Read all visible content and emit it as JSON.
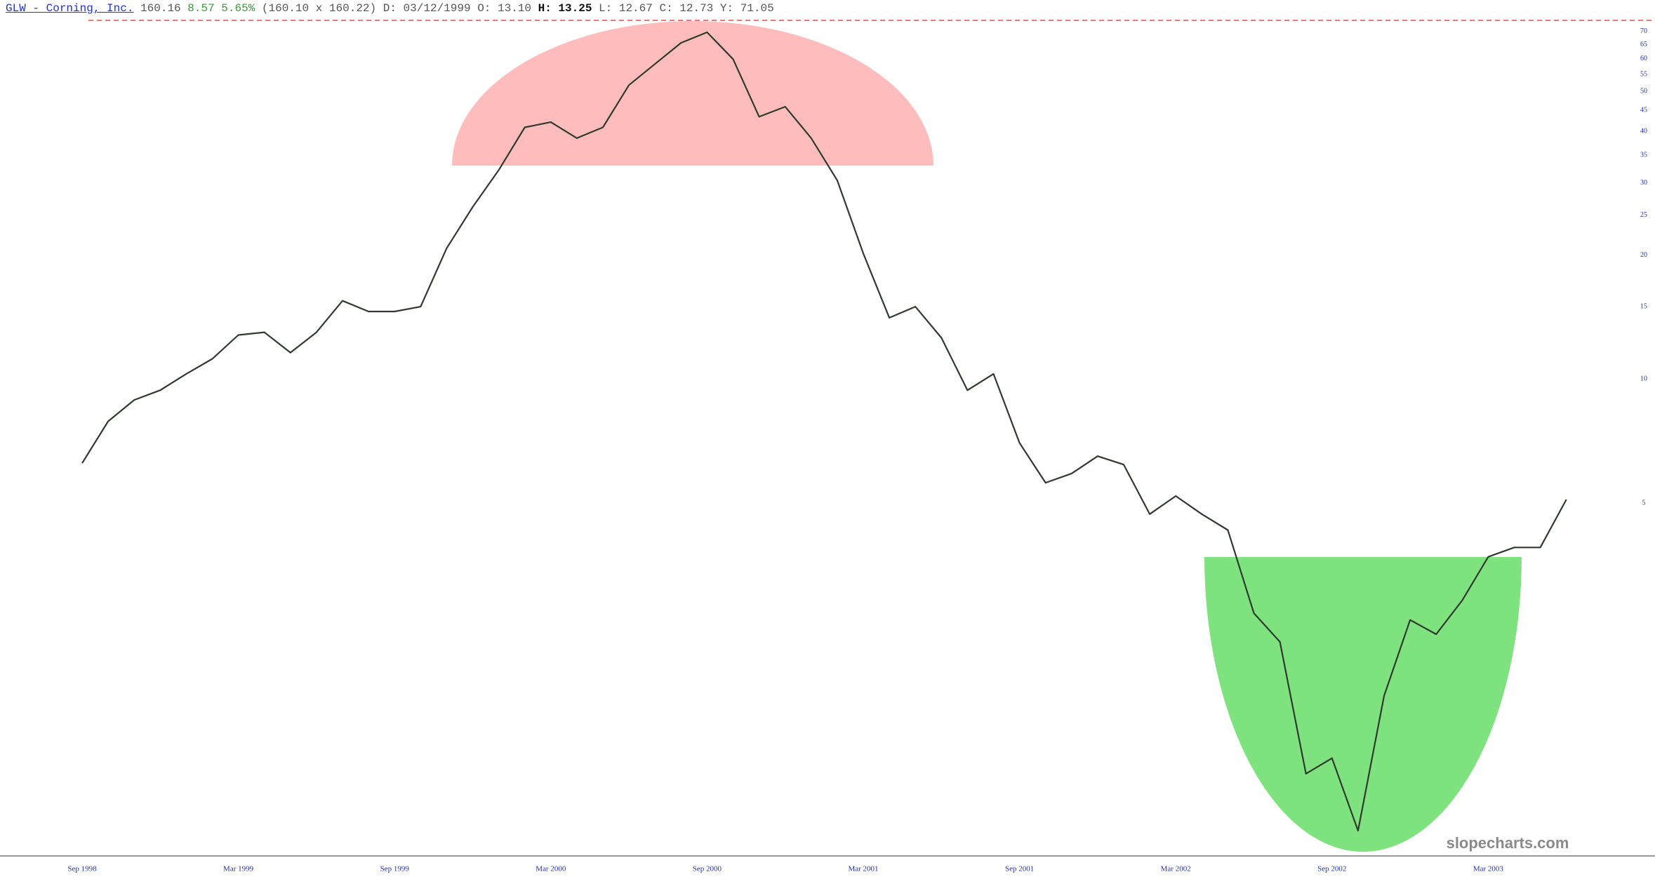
{
  "header": {
    "symbol": "GLW - Corning, Inc.",
    "last": "160.16",
    "change": "8.57",
    "change_pct": "5.65%",
    "bid_ask": "(160.10 x 160.22)",
    "date": "D: 03/12/1999",
    "open": "O: 13.10",
    "high_label": "H:",
    "high": "13.25",
    "low": "L: 12.67",
    "close": "C: 12.73",
    "y": "Y: 71.05"
  },
  "watermark": "slopecharts.com",
  "chart_data": {
    "type": "line",
    "color": "#2e3b2e",
    "log_scale": true,
    "x": [
      "1998-09",
      "1998-10",
      "1998-11",
      "1998-12",
      "1999-01",
      "1999-02",
      "1999-03",
      "1999-04",
      "1999-05",
      "1999-06",
      "1999-07",
      "1999-08",
      "1999-09",
      "1999-10",
      "1999-11",
      "1999-12",
      "2000-01",
      "2000-02",
      "2000-03",
      "2000-04",
      "2000-05",
      "2000-06",
      "2000-07",
      "2000-08",
      "2000-09",
      "2000-10",
      "2000-11",
      "2000-12",
      "2001-01",
      "2001-02",
      "2001-03",
      "2001-04",
      "2001-05",
      "2001-06",
      "2001-07",
      "2001-08",
      "2001-09",
      "2001-10",
      "2001-11",
      "2001-12",
      "2002-01",
      "2002-02",
      "2002-03",
      "2002-04",
      "2002-05",
      "2002-06",
      "2002-07",
      "2002-08",
      "2002-09",
      "2002-10",
      "2002-11",
      "2002-12",
      "2003-01",
      "2003-02",
      "2003-03",
      "2003-04",
      "2003-05",
      "2003-06"
    ],
    "values": [
      6.25,
      7.9,
      8.9,
      9.4,
      10.3,
      11.2,
      12.8,
      13.0,
      11.6,
      13.0,
      15.5,
      14.6,
      14.6,
      15.0,
      20.8,
      26.2,
      32.2,
      40.9,
      42.1,
      38.5,
      40.9,
      51.8,
      58.3,
      65.6,
      69.6,
      59.9,
      43.4,
      45.9,
      38.5,
      30.4,
      20.2,
      14.1,
      15.0,
      12.6,
      9.4,
      10.3,
      7.0,
      5.6,
      5.9,
      6.5,
      6.2,
      4.7,
      5.2,
      4.7,
      4.3,
      2.7,
      2.3,
      1.1,
      1.2,
      0.8,
      1.7,
      2.6,
      2.4,
      2.9,
      3.7,
      3.9,
      3.9,
      5.1
    ],
    "ylim": [
      0.7,
      75
    ],
    "yticks": [
      5,
      10,
      15,
      20,
      25,
      30,
      35,
      40,
      45,
      50,
      55,
      60,
      65,
      70
    ],
    "xticks": [
      {
        "value": "1998-09",
        "label": "Sep 1998"
      },
      {
        "value": "1999-03",
        "label": "Mar 1999"
      },
      {
        "value": "1999-09",
        "label": "Sep 1999"
      },
      {
        "value": "2000-03",
        "label": "Mar 2000"
      },
      {
        "value": "2000-09",
        "label": "Sep 2000"
      },
      {
        "value": "2001-03",
        "label": "Mar 2001"
      },
      {
        "value": "2001-09",
        "label": "Sep 2001"
      },
      {
        "value": "2002-03",
        "label": "Mar 2002"
      },
      {
        "value": "2002-09",
        "label": "Sep 2002"
      },
      {
        "value": "2003-03",
        "label": "Mar 2003"
      }
    ]
  }
}
